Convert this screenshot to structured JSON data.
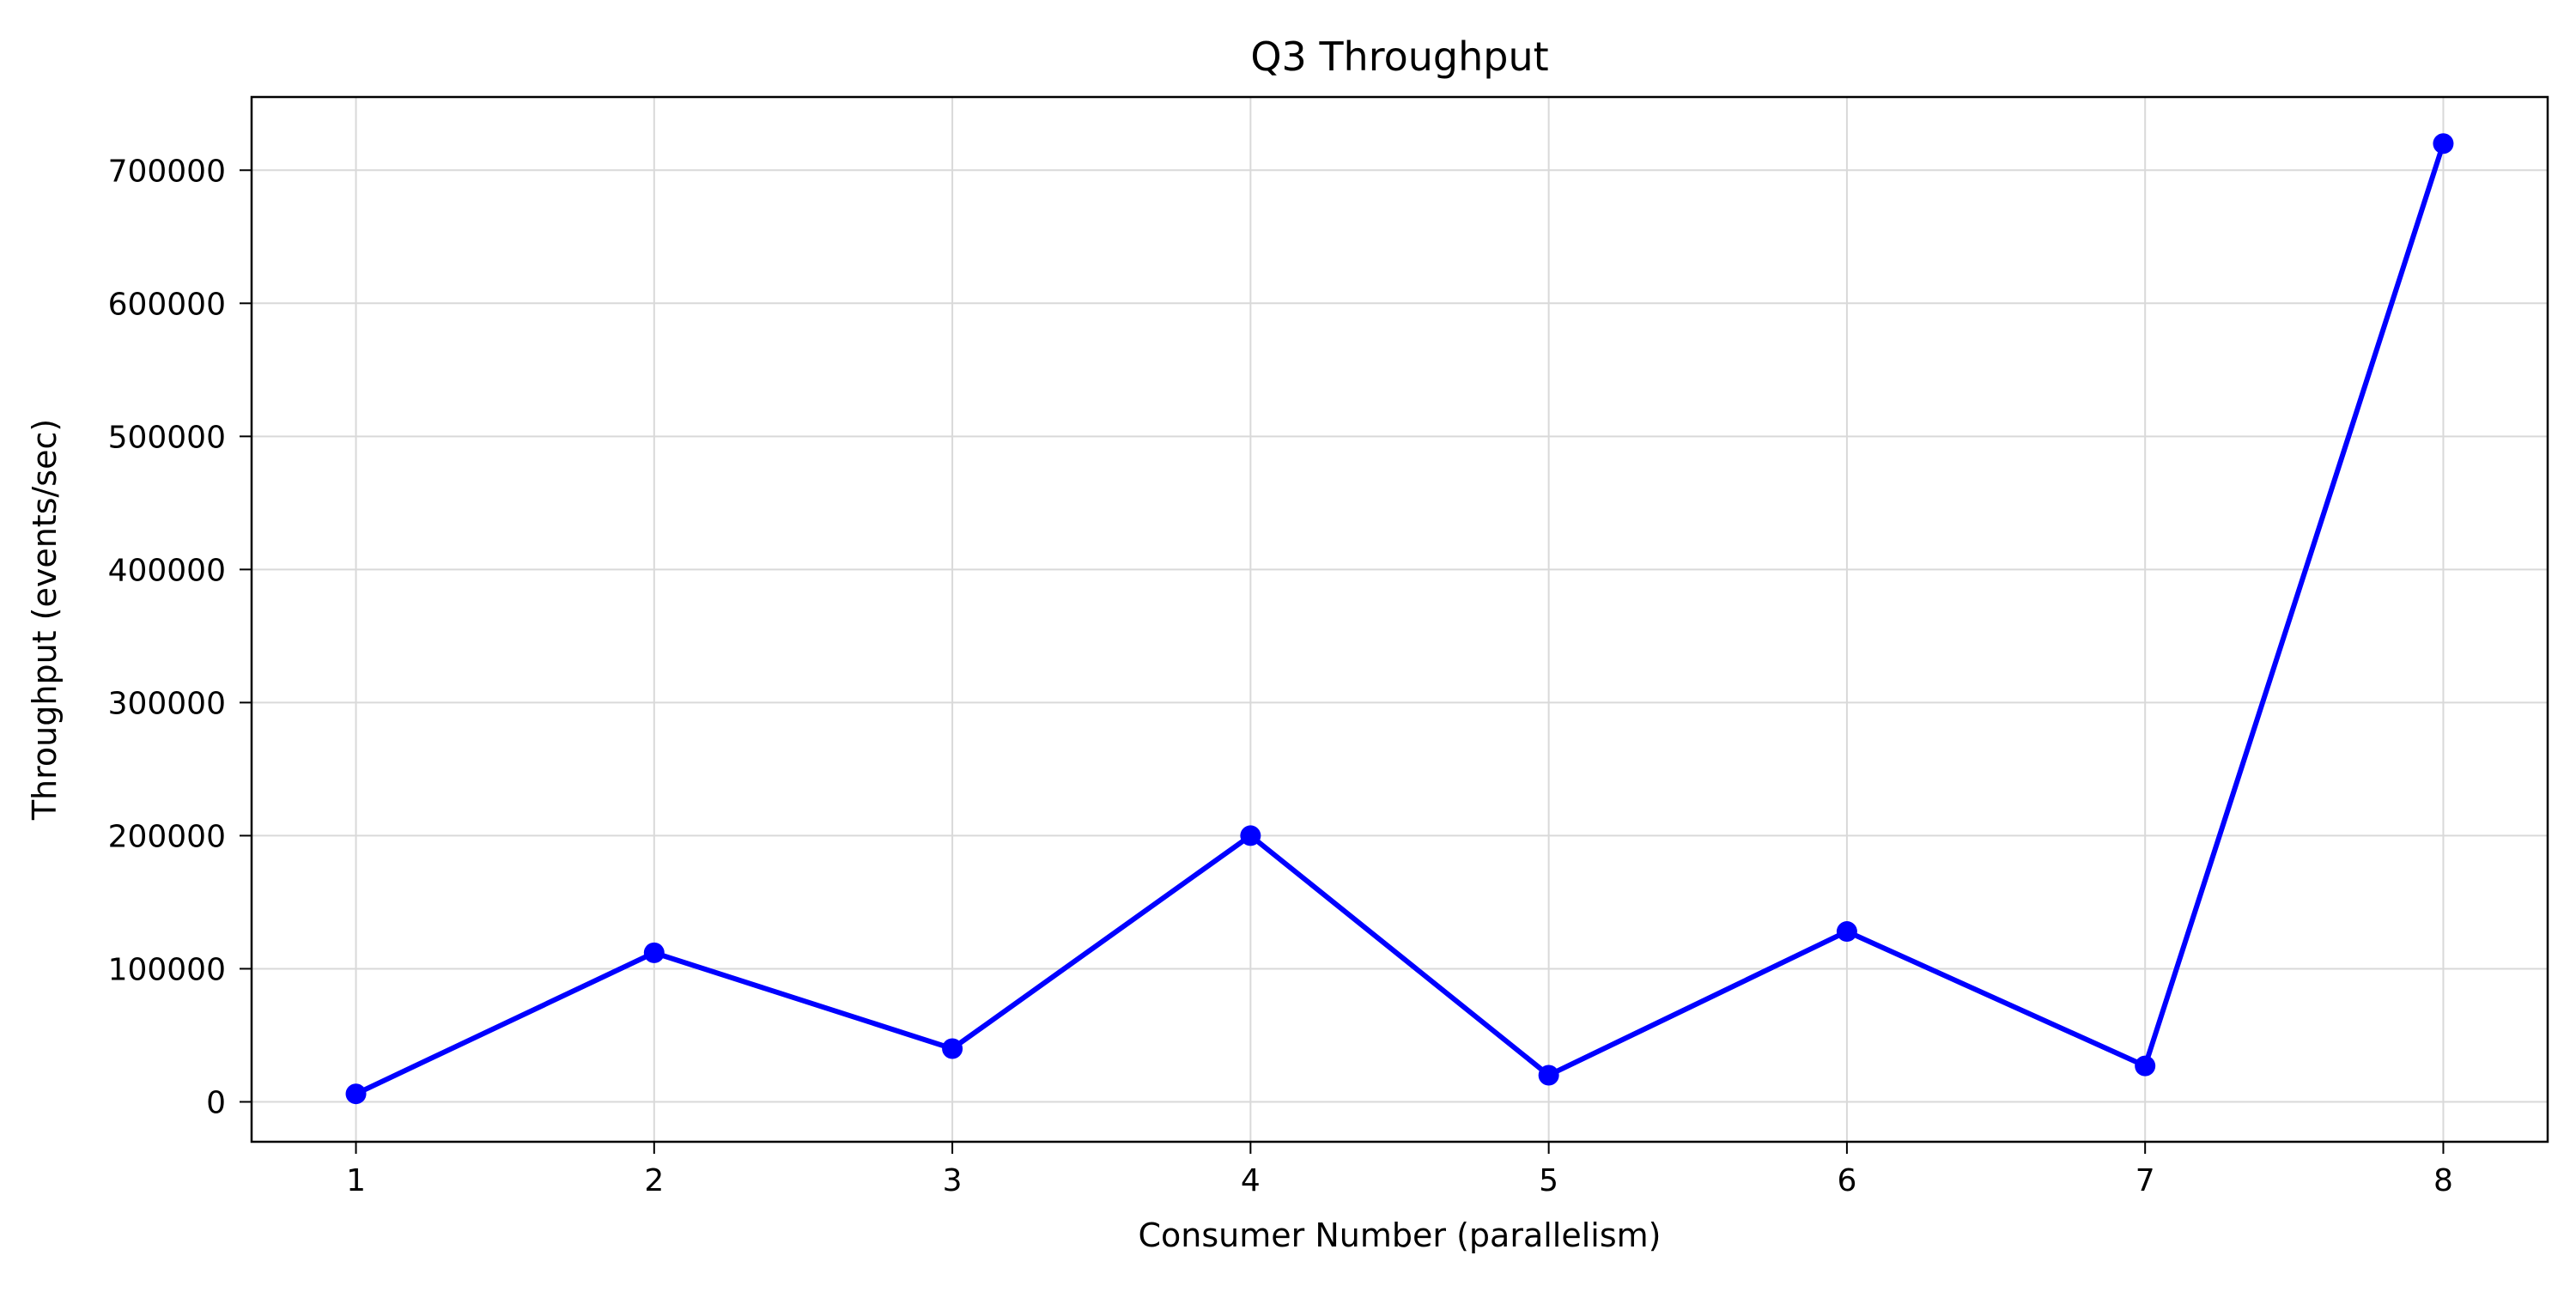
{
  "chart_data": {
    "type": "line",
    "title": "Q3 Throughput",
    "xlabel": "Consumer Number (parallelism)",
    "ylabel": "Throughput (events/sec)",
    "x": [
      1,
      2,
      3,
      4,
      5,
      6,
      7,
      8
    ],
    "series": [
      {
        "values": [
          6000,
          112000,
          40000,
          200000,
          20000,
          128000,
          27000,
          720000
        ]
      }
    ],
    "xlim": [
      0.65,
      8.35
    ],
    "ylim": [
      -30000,
      755000
    ],
    "x_ticks": [
      1,
      2,
      3,
      4,
      5,
      6,
      7,
      8
    ],
    "y_ticks": [
      0,
      100000,
      200000,
      300000,
      400000,
      500000,
      600000,
      700000
    ],
    "grid": true,
    "legend": "none",
    "line_color": "#0000ff",
    "marker": "circle"
  }
}
